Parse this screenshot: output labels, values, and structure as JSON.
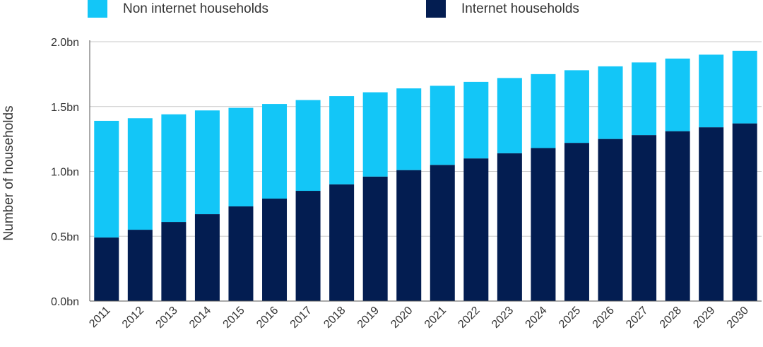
{
  "chart_data": {
    "type": "bar",
    "stacked": true,
    "categories": [
      "2011",
      "2012",
      "2013",
      "2014",
      "2015",
      "2016",
      "2017",
      "2018",
      "2019",
      "2020",
      "2021",
      "2022",
      "2023",
      "2024",
      "2025",
      "2026",
      "2027",
      "2028",
      "2029",
      "2030"
    ],
    "series": [
      {
        "name": "Internet households",
        "color": "#031d51",
        "values": [
          0.49,
          0.55,
          0.61,
          0.67,
          0.73,
          0.79,
          0.85,
          0.9,
          0.96,
          1.01,
          1.05,
          1.1,
          1.14,
          1.18,
          1.22,
          1.25,
          1.28,
          1.31,
          1.34,
          1.37
        ]
      },
      {
        "name": "Non internet households",
        "color": "#13c6f7",
        "values": [
          0.9,
          0.86,
          0.83,
          0.8,
          0.76,
          0.73,
          0.7,
          0.68,
          0.65,
          0.63,
          0.61,
          0.59,
          0.58,
          0.57,
          0.56,
          0.56,
          0.56,
          0.56,
          0.56,
          0.56
        ]
      }
    ],
    "legend": [
      {
        "label": "Non internet households",
        "color": "#13c6f7"
      },
      {
        "label": "Internet households",
        "color": "#031d51"
      }
    ],
    "legend_position": "top",
    "ylabel": "Number of households",
    "xlabel": "",
    "ylim": [
      0,
      2.0
    ],
    "yticks": [
      0,
      0.5,
      1.0,
      1.5,
      2.0
    ],
    "ytick_labels": [
      "0.0bn",
      "0.5bn",
      "1.0bn",
      "1.5bn",
      "2.0bn"
    ],
    "grid": true
  }
}
